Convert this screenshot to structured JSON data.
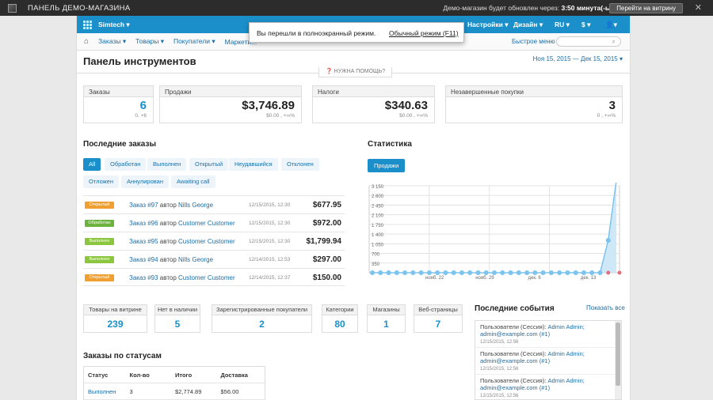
{
  "topbar": {
    "title": "ПАНЕЛЬ ДЕМО-МАГАЗИНА",
    "update_text": "Демо-магазин будет обновлен через:",
    "update_time": "3:50 минута(-ы)",
    "storefront_button": "Перейти на витрину"
  },
  "navbar": {
    "store": "Simtech ▾",
    "settings": "Настройки ▾",
    "design": "Дизайн ▾",
    "lang": "RU ▾",
    "currency": "$ ▾",
    "user": "▾"
  },
  "menu": {
    "items": [
      "Заказы ▾",
      "Товары ▾",
      "Покупатели ▾",
      "Маркети..."
    ],
    "quick_menu": "Быстрое меню",
    "search_placeholder": ""
  },
  "fullscreen_popup": {
    "message": "Вы перешли в полноэкранный режим.",
    "exit_link": "Обычный режим (F11)"
  },
  "page": {
    "title": "Панель инструментов",
    "date_range": "Ноя 15, 2015 — Дек 15, 2015 ▾",
    "help": "НУЖНА ПОМОЩЬ?"
  },
  "summary": [
    {
      "label": "Заказы",
      "value": "6",
      "sub": "0, +6",
      "blue": true
    },
    {
      "label": "Продажи",
      "value": "$3,746.89",
      "sub": "$0.00 , +∞%",
      "blue": false
    },
    {
      "label": "Налоги",
      "value": "$340.63",
      "sub": "$0.00 , +∞%",
      "blue": false
    },
    {
      "label": "Незавершенные покупки",
      "value": "3",
      "sub": "0 , +∞%",
      "blue": false
    }
  ],
  "recent_orders": {
    "title": "Последние заказы",
    "filters": [
      "All",
      "Обработан",
      "Выполнен",
      "Открытый",
      "Неудавшийся",
      "Отклонен",
      "Отложен",
      "Аннулирован",
      "Awaiting call"
    ],
    "orders": [
      {
        "status": "Открытый",
        "status_color": "#f0a030",
        "order": "Заказ #97",
        "by": "автор",
        "customer": "Nills George",
        "date": "12/15/2015, 12:30",
        "amount": "$677.95"
      },
      {
        "status": "Обработан",
        "status_color": "#6cb33e",
        "order": "Заказ #96",
        "by": "автор",
        "customer": "Customer Customer",
        "date": "12/15/2015, 12:30",
        "amount": "$972.00"
      },
      {
        "status": "Выполнен",
        "status_color": "#8cc63f",
        "order": "Заказ #95",
        "by": "автор",
        "customer": "Customer Customer",
        "date": "12/15/2015, 12:30",
        "amount": "$1,799.94"
      },
      {
        "status": "Выполнен",
        "status_color": "#8cc63f",
        "order": "Заказ #94",
        "by": "автор",
        "customer": "Nills George",
        "date": "12/14/2015, 12:53",
        "amount": "$297.00"
      },
      {
        "status": "Открытый",
        "status_color": "#f0a030",
        "order": "Заказ #93",
        "by": "автор",
        "customer": "Customer Customer",
        "date": "12/14/2015, 12:37",
        "amount": "$150.00"
      }
    ]
  },
  "statistics": {
    "title": "Статистика",
    "tab": "Продажи"
  },
  "chart_data": {
    "type": "area",
    "yticks": [
      350,
      700,
      1050,
      1400,
      1750,
      2100,
      2450,
      2800,
      3150
    ],
    "ylim": [
      0,
      3150
    ],
    "xlabels": [
      "нояб. 22",
      "нояб. 29",
      "дек. 6",
      "дек. 13"
    ],
    "x": [
      1,
      2,
      3,
      4,
      5,
      6,
      7,
      8,
      9,
      10,
      11,
      12,
      13,
      14,
      15,
      16,
      17,
      18,
      19,
      20,
      21,
      22,
      23,
      24,
      25,
      26,
      27,
      28,
      29,
      30,
      31
    ],
    "series": [
      {
        "color": "#7cc3ee",
        "values": [
          0,
          0,
          0,
          0,
          0,
          0,
          0,
          0,
          0,
          0,
          0,
          0,
          0,
          0,
          0,
          0,
          0,
          0,
          0,
          0,
          0,
          0,
          0,
          0,
          0,
          0,
          0,
          0,
          0,
          1172,
          3340
        ]
      },
      {
        "color": "#e07080",
        "values": [
          0,
          0,
          0,
          0,
          0,
          0,
          0,
          0,
          0,
          0,
          0,
          0,
          0,
          0,
          0,
          0,
          0,
          0,
          0,
          0,
          0,
          0,
          0,
          0,
          0,
          0,
          0,
          0,
          0,
          0,
          0
        ]
      }
    ],
    "grid": true
  },
  "stats_cards": [
    {
      "label": "Товары на витрине",
      "value": "239"
    },
    {
      "label": "Нет в наличии",
      "value": "5"
    },
    {
      "label": "Зарегистрированные покупатели",
      "value": "2"
    },
    {
      "label": "Категории",
      "value": "80"
    },
    {
      "label": "Магазины",
      "value": "1"
    },
    {
      "label": "Веб-страницы",
      "value": "7"
    }
  ],
  "events": {
    "title": "Последние события",
    "show_all": "Показать все",
    "items": [
      {
        "prefix": "Пользователи (Сессия):",
        "user": "Admin Admin;",
        "email": "admin@example.com (#1)",
        "date": "12/15/2015, 12:56"
      },
      {
        "prefix": "Пользователи (Сессия):",
        "user": "Admin Admin;",
        "email": "admin@example.com (#1)",
        "date": "12/15/2015, 12:56"
      },
      {
        "prefix": "Пользователи (Сессия):",
        "user": "Admin Admin;",
        "email": "admin@example.com (#1)",
        "date": "12/15/2015, 12:56"
      }
    ]
  },
  "orders_by_status": {
    "title": "Заказы по статусам",
    "headers": [
      "Статус",
      "Кол-во",
      "Итого",
      "Доставка"
    ],
    "rows": [
      [
        "Выполнен",
        "3",
        "$2,774.89",
        "$56.00"
      ]
    ]
  }
}
